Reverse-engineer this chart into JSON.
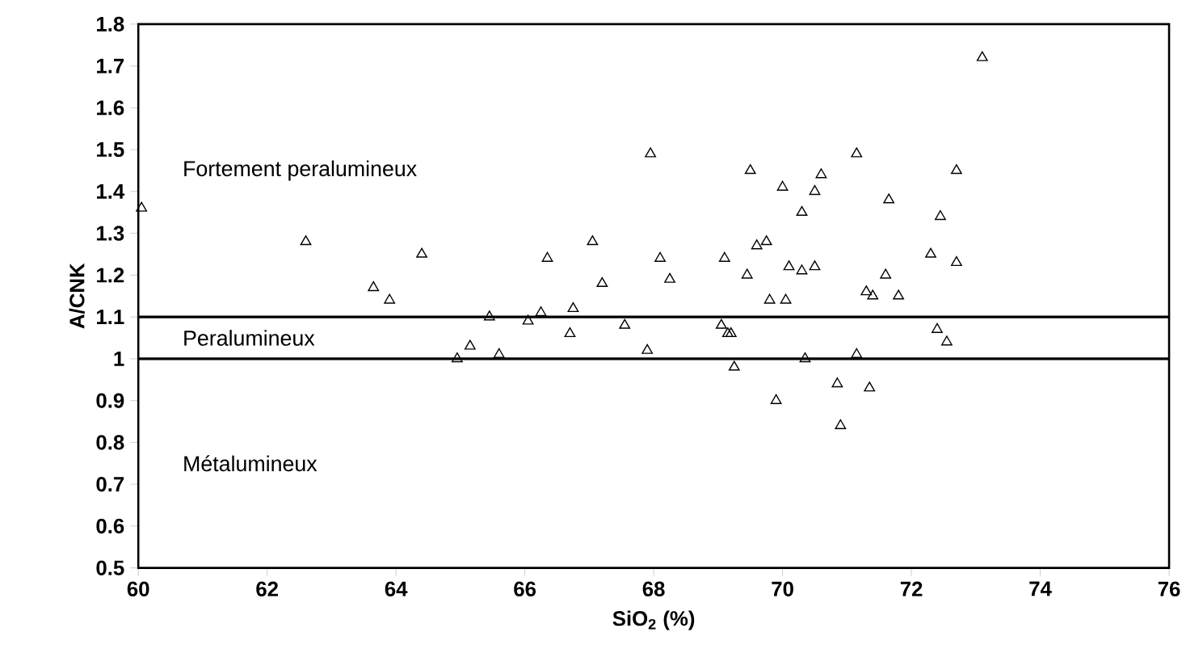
{
  "chart_data": {
    "type": "scatter",
    "xlabel": "SiO$_{2}$ (%)",
    "ylabel": "A/CNK",
    "xlim": [
      60,
      76
    ],
    "xticks": [
      60,
      62,
      64,
      66,
      68,
      70,
      72,
      74,
      76
    ],
    "ylim": [
      0.5,
      1.8
    ],
    "yticks": [
      0.5,
      0.6,
      0.7,
      0.8,
      0.9,
      1,
      1.1,
      1.2,
      1.3,
      1.4,
      1.5,
      1.6,
      1.7,
      1.8
    ],
    "marker": "triangle",
    "grid": false,
    "series": [
      {
        "color": "#000000",
        "x": [
          60.05,
          62.6,
          63.65,
          63.9,
          64.4,
          64.95,
          65.15,
          65.45,
          65.6,
          66.05,
          66.25,
          66.35,
          66.7,
          66.75,
          67.05,
          67.2,
          67.55,
          67.9,
          67.95,
          68.1,
          68.25,
          69.05,
          69.1,
          69.15,
          69.2,
          69.25,
          69.45,
          69.5,
          69.6,
          69.75,
          69.8,
          69.9,
          70.0,
          70.05,
          70.1,
          70.3,
          70.3,
          70.35,
          70.5,
          70.5,
          70.6,
          70.85,
          70.9,
          71.15,
          71.15,
          71.3,
          71.35,
          71.4,
          71.6,
          71.65,
          71.8,
          72.3,
          72.4,
          72.45,
          72.55,
          72.7,
          72.7,
          73.1
        ],
        "values": [
          1.36,
          1.28,
          1.17,
          1.14,
          1.25,
          1.0,
          1.03,
          1.1,
          1.01,
          1.09,
          1.11,
          1.24,
          1.06,
          1.12,
          1.28,
          1.18,
          1.08,
          1.02,
          1.49,
          1.24,
          1.19,
          1.08,
          1.24,
          1.06,
          1.06,
          0.98,
          1.2,
          1.45,
          1.27,
          1.28,
          1.14,
          0.9,
          1.41,
          1.14,
          1.22,
          1.35,
          1.21,
          1.0,
          1.4,
          1.22,
          1.44,
          0.94,
          0.84,
          1.49,
          1.01,
          1.16,
          0.93,
          1.15,
          1.2,
          1.38,
          1.15,
          1.25,
          1.07,
          1.34,
          1.04,
          1.45,
          1.23,
          1.72
        ]
      }
    ],
    "ref_lines": [
      {
        "axis": "y",
        "value": 1.1,
        "color": "#000000"
      },
      {
        "axis": "y",
        "value": 1.0,
        "color": "#000000"
      }
    ],
    "annotations": [
      "Fortement peralumineux",
      "Peralumineux",
      "Métalumineux"
    ]
  }
}
